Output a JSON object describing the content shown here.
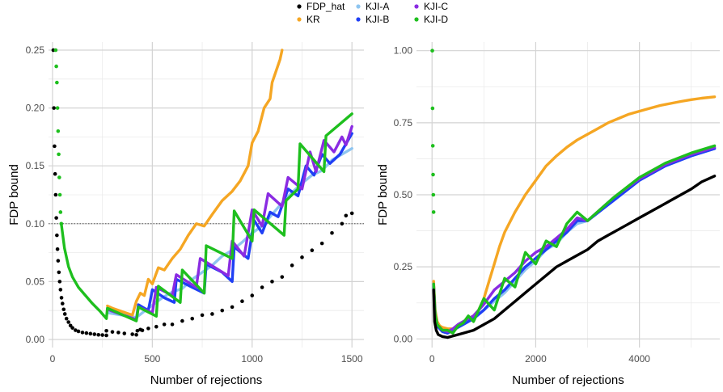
{
  "legend": {
    "entries": [
      {
        "label": "FDP_hat",
        "color": "#000000"
      },
      {
        "label": "KR",
        "color": "#f5a623"
      },
      {
        "label": "KJI-A",
        "color": "#8ec5f0"
      },
      {
        "label": "KJI-B",
        "color": "#1f3ff5"
      },
      {
        "label": "KJI-C",
        "color": "#8a2be2"
      },
      {
        "label": "KJI-D",
        "color": "#1ebf1e"
      }
    ]
  },
  "chart_data": [
    {
      "type": "line",
      "xlabel": "Number of rejections",
      "ylabel": "FDP bound",
      "xlim": [
        -20,
        1560
      ],
      "ylim": [
        -0.007,
        0.257
      ],
      "xticks": [
        0,
        500,
        1000,
        1500
      ],
      "yticks": [
        0.0,
        0.05,
        0.1,
        0.15,
        0.2,
        0.25
      ],
      "ytick_labels": [
        "0.00",
        "0.05",
        "0.10",
        "0.15",
        "0.20",
        "0.25"
      ],
      "reference_line": {
        "y": 0.1,
        "style": "dotted"
      },
      "grid": true,
      "series": [
        {
          "name": "FDP_hat",
          "style": "points",
          "color": "#000000",
          "x": [
            4,
            7,
            10,
            13,
            16,
            19,
            22,
            25,
            28,
            32,
            36,
            40,
            45,
            50,
            56,
            62,
            70,
            80,
            90,
            100,
            115,
            130,
            150,
            170,
            190,
            210,
            230,
            250,
            270,
            270,
            300,
            330,
            360,
            400,
            420,
            425,
            440,
            450,
            480,
            520,
            560,
            600,
            650,
            700,
            750,
            800,
            850,
            900,
            950,
            1000,
            1050,
            1100,
            1150,
            1200,
            1250,
            1300,
            1350,
            1400,
            1450,
            1470,
            1500
          ],
          "y": [
            0.25,
            0.2,
            0.167,
            0.143,
            0.125,
            0.105,
            0.09,
            0.078,
            0.068,
            0.058,
            0.05,
            0.043,
            0.036,
            0.031,
            0.026,
            0.022,
            0.018,
            0.015,
            0.012,
            0.01,
            0.008,
            0.007,
            0.006,
            0.0055,
            0.005,
            0.0045,
            0.004,
            0.0038,
            0.0035,
            0.0075,
            0.0065,
            0.006,
            0.0052,
            0.0045,
            0.004,
            0.0075,
            0.0085,
            0.0078,
            0.0095,
            0.011,
            0.013,
            0.013,
            0.016,
            0.018,
            0.021,
            0.022,
            0.025,
            0.028,
            0.033,
            0.038,
            0.045,
            0.05,
            0.054,
            0.064,
            0.071,
            0.077,
            0.083,
            0.092,
            0.1,
            0.107,
            0.109
          ]
        },
        {
          "name": "KJI-A",
          "style": "line",
          "color": "#8ec5f0",
          "x": [
            275,
            420,
            480,
            550,
            600,
            650,
            700,
            750,
            800,
            850,
            900,
            950,
            1000,
            1050,
            1100,
            1150,
            1200,
            1250,
            1300,
            1350,
            1400,
            1450,
            1500
          ],
          "y": [
            0.023,
            0.019,
            0.027,
            0.036,
            0.041,
            0.044,
            0.052,
            0.058,
            0.064,
            0.072,
            0.077,
            0.084,
            0.092,
            0.098,
            0.108,
            0.118,
            0.127,
            0.135,
            0.142,
            0.146,
            0.155,
            0.16,
            0.165
          ]
        },
        {
          "name": "KJI-B",
          "style": "line",
          "color": "#1f3ff5",
          "x": [
            275,
            420,
            430,
            480,
            500,
            560,
            610,
            620,
            700,
            760,
            770,
            850,
            900,
            910,
            980,
            1010,
            1050,
            1090,
            1130,
            1180,
            1230,
            1270,
            1310,
            1350,
            1390,
            1440,
            1500
          ],
          "y": [
            0.026,
            0.017,
            0.03,
            0.025,
            0.043,
            0.036,
            0.032,
            0.052,
            0.045,
            0.04,
            0.065,
            0.058,
            0.05,
            0.08,
            0.07,
            0.103,
            0.092,
            0.11,
            0.106,
            0.13,
            0.124,
            0.15,
            0.142,
            0.16,
            0.152,
            0.16,
            0.178
          ]
        },
        {
          "name": "KJI-C",
          "style": "line",
          "color": "#8a2be2",
          "x": [
            275,
            420,
            430,
            500,
            520,
            600,
            620,
            720,
            740,
            880,
            900,
            960,
            1000,
            1050,
            1080,
            1150,
            1180,
            1250,
            1290,
            1320,
            1360,
            1410,
            1450,
            1470,
            1500
          ],
          "y": [
            0.026,
            0.017,
            0.028,
            0.023,
            0.045,
            0.038,
            0.056,
            0.045,
            0.07,
            0.055,
            0.085,
            0.072,
            0.112,
            0.098,
            0.126,
            0.115,
            0.14,
            0.13,
            0.162,
            0.145,
            0.172,
            0.162,
            0.175,
            0.168,
            0.184
          ]
        },
        {
          "name": "KR",
          "style": "line",
          "color": "#f5a623",
          "x": [
            275,
            300,
            350,
            400,
            420,
            440,
            460,
            480,
            500,
            530,
            560,
            600,
            640,
            680,
            720,
            760,
            800,
            850,
            900,
            940,
            980,
            1000,
            1030,
            1060,
            1090,
            1100,
            1120,
            1140,
            1150
          ],
          "y": [
            0.029,
            0.027,
            0.024,
            0.021,
            0.033,
            0.04,
            0.038,
            0.052,
            0.048,
            0.062,
            0.06,
            0.07,
            0.078,
            0.09,
            0.1,
            0.098,
            0.108,
            0.12,
            0.128,
            0.137,
            0.15,
            0.17,
            0.18,
            0.2,
            0.208,
            0.222,
            0.232,
            0.242,
            0.25
          ]
        },
        {
          "name": "KJI-D",
          "style": "points",
          "color": "#1ebf1e",
          "x": [
            16,
            19,
            22,
            25,
            28,
            31,
            34,
            37,
            40,
            44
          ],
          "y": [
            0.25,
            0.236,
            0.222,
            0.2,
            0.18,
            0.16,
            0.14,
            0.125,
            0.11,
            0.1
          ]
        },
        {
          "name": "KJI-D",
          "style": "line",
          "color": "#1ebf1e",
          "x": [
            44,
            60,
            80,
            100,
            130,
            160,
            200,
            240,
            270,
            275,
            420,
            430,
            520,
            530,
            640,
            650,
            760,
            770,
            900,
            910,
            1000,
            1010,
            1160,
            1170,
            1230,
            1240,
            1360,
            1370,
            1500
          ],
          "y": [
            0.1,
            0.079,
            0.063,
            0.054,
            0.045,
            0.039,
            0.031,
            0.024,
            0.018,
            0.027,
            0.016,
            0.028,
            0.02,
            0.046,
            0.032,
            0.06,
            0.04,
            0.081,
            0.07,
            0.111,
            0.085,
            0.112,
            0.09,
            0.12,
            0.13,
            0.169,
            0.145,
            0.176,
            0.195
          ]
        }
      ]
    },
    {
      "type": "line",
      "xlabel": "Number of rejections",
      "ylabel": "FDP bound",
      "xlim": [
        -300,
        5550
      ],
      "ylim": [
        -0.03,
        1.03
      ],
      "xticks": [
        0,
        2000,
        4000
      ],
      "yticks": [
        0.0,
        0.25,
        0.5,
        0.75,
        1.0
      ],
      "ytick_labels": [
        "0.00",
        "0.25",
        "0.50",
        "0.75",
        "1.00"
      ],
      "grid": true,
      "series": [
        {
          "name": "KR",
          "style": "line",
          "color": "#f5a623",
          "x": [
            30,
            60,
            100,
            150,
            200,
            300,
            400,
            500,
            600,
            700,
            800,
            900,
            1000,
            1100,
            1200,
            1300,
            1400,
            1600,
            1800,
            2000,
            2200,
            2400,
            2600,
            2800,
            3000,
            3200,
            3400,
            3600,
            3800,
            4000,
            4200,
            4400,
            4600,
            4800,
            5000,
            5200,
            5450
          ],
          "y": [
            0.2,
            0.1,
            0.06,
            0.045,
            0.04,
            0.035,
            0.035,
            0.045,
            0.06,
            0.07,
            0.08,
            0.1,
            0.14,
            0.2,
            0.26,
            0.32,
            0.37,
            0.44,
            0.5,
            0.55,
            0.6,
            0.635,
            0.665,
            0.69,
            0.71,
            0.73,
            0.75,
            0.765,
            0.78,
            0.79,
            0.8,
            0.81,
            0.817,
            0.824,
            0.83,
            0.835,
            0.84
          ]
        },
        {
          "name": "KJI-A",
          "style": "line",
          "color": "#8ec5f0",
          "x": [
            30,
            60,
            100,
            200,
            300,
            400,
            500,
            600,
            700,
            800,
            1000,
            1200,
            1400,
            1600,
            1800,
            2000,
            2200,
            2400,
            2600,
            2800,
            3000,
            3500,
            4000,
            4500,
            5000,
            5450
          ],
          "y": [
            0.18,
            0.08,
            0.045,
            0.025,
            0.02,
            0.03,
            0.04,
            0.05,
            0.06,
            0.07,
            0.1,
            0.13,
            0.16,
            0.2,
            0.24,
            0.27,
            0.31,
            0.33,
            0.37,
            0.4,
            0.41,
            0.48,
            0.55,
            0.6,
            0.635,
            0.66
          ]
        },
        {
          "name": "KJI-B",
          "style": "line",
          "color": "#1f3ff5",
          "x": [
            30,
            60,
            100,
            200,
            300,
            400,
            500,
            600,
            700,
            800,
            1000,
            1200,
            1400,
            1600,
            1800,
            2000,
            2200,
            2400,
            2600,
            2800,
            3000,
            3500,
            4000,
            4500,
            5000,
            5450
          ],
          "y": [
            0.18,
            0.08,
            0.045,
            0.025,
            0.02,
            0.03,
            0.04,
            0.05,
            0.06,
            0.07,
            0.1,
            0.14,
            0.17,
            0.21,
            0.25,
            0.28,
            0.31,
            0.34,
            0.37,
            0.41,
            0.41,
            0.48,
            0.55,
            0.6,
            0.635,
            0.66
          ]
        },
        {
          "name": "KJI-C",
          "style": "line",
          "color": "#8a2be2",
          "x": [
            30,
            60,
            100,
            200,
            300,
            400,
            500,
            600,
            700,
            800,
            1000,
            1200,
            1400,
            1600,
            1800,
            2000,
            2200,
            2400,
            2600,
            2800,
            3000,
            3500,
            4000,
            4500,
            5000,
            5450
          ],
          "y": [
            0.19,
            0.085,
            0.05,
            0.03,
            0.025,
            0.035,
            0.05,
            0.06,
            0.07,
            0.08,
            0.12,
            0.17,
            0.2,
            0.23,
            0.27,
            0.3,
            0.32,
            0.35,
            0.38,
            0.42,
            0.41,
            0.49,
            0.555,
            0.605,
            0.64,
            0.665
          ]
        },
        {
          "name": "KJI-D",
          "style": "points",
          "color": "#1ebf1e",
          "x": [
            5,
            10,
            15,
            20,
            25,
            30
          ],
          "y": [
            1.0,
            0.8,
            0.67,
            0.57,
            0.5,
            0.44
          ]
        },
        {
          "name": "KJI-D",
          "style": "line",
          "color": "#1ebf1e",
          "x": [
            30,
            60,
            100,
            200,
            300,
            400,
            500,
            600,
            700,
            800,
            1000,
            1200,
            1400,
            1600,
            1800,
            2000,
            2200,
            2400,
            2600,
            2800,
            3000,
            3500,
            4000,
            4500,
            5000,
            5450
          ],
          "y": [
            0.19,
            0.085,
            0.05,
            0.03,
            0.03,
            0.02,
            0.045,
            0.055,
            0.08,
            0.06,
            0.14,
            0.1,
            0.21,
            0.18,
            0.3,
            0.26,
            0.34,
            0.32,
            0.4,
            0.44,
            0.41,
            0.49,
            0.56,
            0.61,
            0.645,
            0.67
          ]
        },
        {
          "name": "FDP_hat",
          "style": "line",
          "color": "#000000",
          "x": [
            30,
            50,
            80,
            120,
            200,
            300,
            400,
            500,
            600,
            800,
            1000,
            1200,
            1400,
            1600,
            1800,
            2000,
            2200,
            2400,
            2600,
            2800,
            3000,
            3200,
            3400,
            3600,
            3800,
            4000,
            4200,
            4400,
            4600,
            4800,
            5000,
            5200,
            5450
          ],
          "y": [
            0.17,
            0.06,
            0.03,
            0.015,
            0.008,
            0.005,
            0.01,
            0.015,
            0.02,
            0.03,
            0.05,
            0.07,
            0.1,
            0.13,
            0.16,
            0.19,
            0.22,
            0.25,
            0.27,
            0.29,
            0.31,
            0.34,
            0.36,
            0.38,
            0.4,
            0.42,
            0.44,
            0.46,
            0.48,
            0.5,
            0.52,
            0.545,
            0.565
          ]
        }
      ]
    }
  ]
}
